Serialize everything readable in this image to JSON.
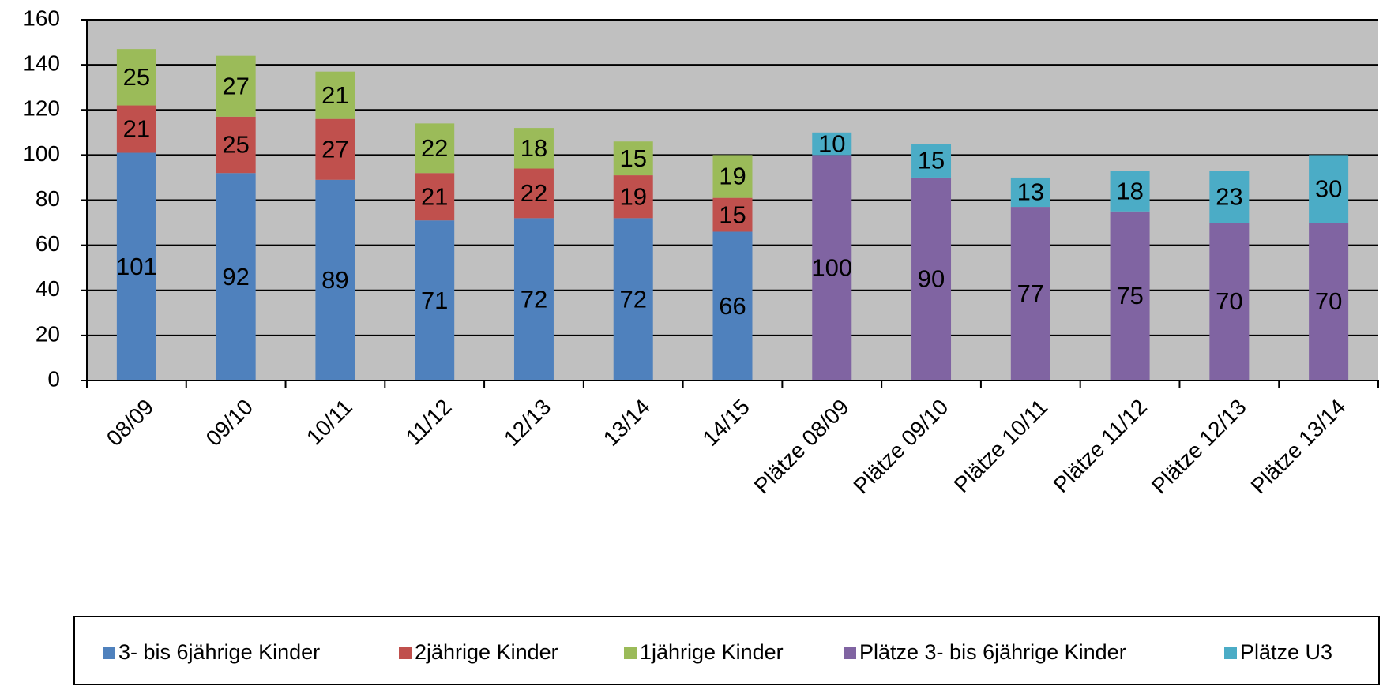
{
  "chart_data": {
    "type": "stacked_bar",
    "categories": [
      "08/09",
      "09/10",
      "10/11",
      "11/12",
      "12/13",
      "13/14",
      "14/15",
      "Plätze 08/09",
      "Plätze 09/10",
      "Plätze 10/11",
      "Plätze 11/12",
      "Plätze 12/13",
      "Plätze 13/14"
    ],
    "series": [
      {
        "name": "3- bis 6jährige Kinder",
        "color": "#4f81bd",
        "values": [
          101,
          92,
          89,
          71,
          72,
          72,
          66,
          null,
          null,
          null,
          null,
          null,
          null
        ]
      },
      {
        "name": "2jährige Kinder",
        "color": "#c0504d",
        "values": [
          21,
          25,
          27,
          21,
          22,
          19,
          15,
          null,
          null,
          null,
          null,
          null,
          null
        ]
      },
      {
        "name": "1jährige Kinder",
        "color": "#9bbb59",
        "values": [
          25,
          27,
          21,
          22,
          18,
          15,
          19,
          null,
          null,
          null,
          null,
          null,
          null
        ]
      },
      {
        "name": "Plätze 3- bis 6jährige Kinder",
        "color": "#8064a2",
        "values": [
          null,
          null,
          null,
          null,
          null,
          null,
          null,
          100,
          90,
          77,
          75,
          70,
          70
        ]
      },
      {
        "name": "Plätze U3",
        "color": "#4bacc6",
        "values": [
          null,
          null,
          null,
          null,
          null,
          null,
          null,
          10,
          15,
          13,
          18,
          23,
          30
        ]
      }
    ],
    "ylim": [
      0,
      160
    ],
    "yticks": [
      0,
      20,
      40,
      60,
      80,
      100,
      120,
      140,
      160
    ],
    "grid": true,
    "legend": "bottom"
  }
}
